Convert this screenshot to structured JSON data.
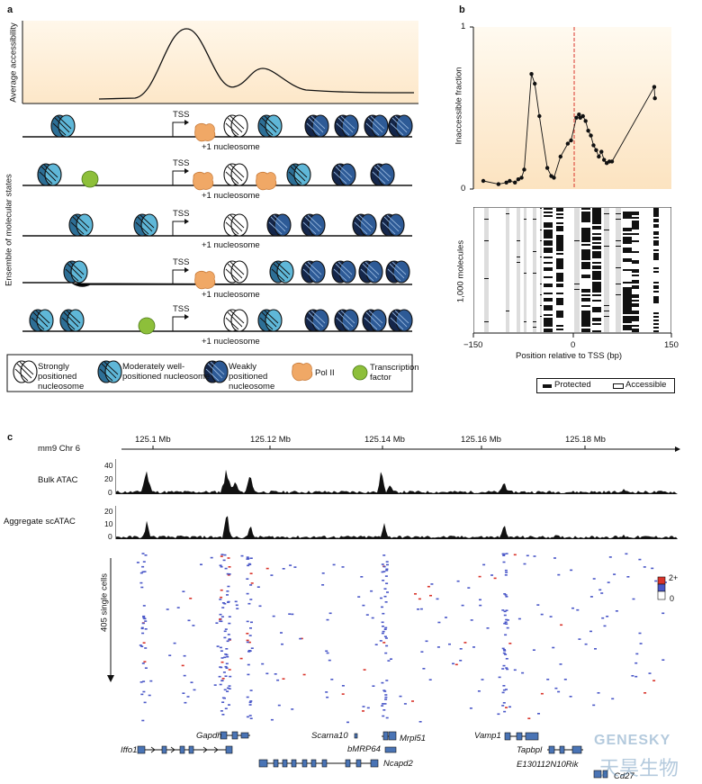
{
  "panels": {
    "a": "a",
    "b": "b",
    "c": "c"
  },
  "panel_a": {
    "y_label_top": "Average accessibility",
    "y_label_states": "Ensemble of molecular states",
    "tss": "TSS",
    "plus1": "+1 nucleosome",
    "legend": {
      "strong": "Strongly positioned nucleosome",
      "moderate": "Moderately well-positioned nucleosome",
      "weak": "Weakly positioned nucleosome",
      "pol2": "Pol II",
      "tf": "Transcription factor"
    }
  },
  "panel_b": {
    "ylabel": "Inaccessible fraction",
    "y_ticks": [
      "0",
      "1"
    ],
    "heat_ylabel": "1,000 molecules",
    "xlabel": "Position relative to TSS (bp)",
    "x_ticks": [
      "−150",
      "0",
      "150"
    ],
    "legend_protected": "Protected",
    "legend_accessible": "Accessible"
  },
  "chart_data": {
    "type": "line",
    "title": "",
    "xlabel": "Position relative to TSS (bp)",
    "ylabel": "Inaccessible fraction",
    "xlim": [
      -150,
      150
    ],
    "ylim": [
      0,
      1
    ],
    "x": [
      -135,
      -112,
      -100,
      -95,
      -87,
      -82,
      -77,
      -73,
      -62,
      -57,
      -50,
      -38,
      -32,
      -28,
      -18,
      -7,
      -2,
      6,
      10,
      12,
      16,
      20,
      24,
      28,
      32,
      36,
      40,
      44,
      48,
      52,
      56,
      60,
      124,
      125
    ],
    "y": [
      0.05,
      0.03,
      0.04,
      0.05,
      0.04,
      0.06,
      0.07,
      0.12,
      0.71,
      0.65,
      0.45,
      0.13,
      0.08,
      0.07,
      0.2,
      0.28,
      0.3,
      0.44,
      0.46,
      0.44,
      0.45,
      0.42,
      0.36,
      0.33,
      0.27,
      0.24,
      0.2,
      0.23,
      0.18,
      0.16,
      0.17,
      0.17,
      0.63,
      0.56
    ]
  },
  "panel_c": {
    "genome": "mm9 Chr 6",
    "ticks": [
      "125.1 Mb",
      "125.12 Mb",
      "125.14 Mb",
      "125.16 Mb",
      "125.18 Mb"
    ],
    "bulk_label": "Bulk ATAC",
    "bulk_ticks": [
      "40",
      "20",
      "0"
    ],
    "agg_label": "Aggregate scATAC",
    "agg_ticks": [
      "20",
      "10",
      "0"
    ],
    "cells_label": "405 single cells",
    "scale_top": "2+",
    "scale_bottom": "0",
    "genes": {
      "gapdh": "Gapdh",
      "iffo1": "Iffo1",
      "scarna10": "Scarna10",
      "mrpl51": "Mrpl51",
      "bmrp64": "bMRP64",
      "ncapd2": "Ncapd2",
      "vamp1": "Vamp1",
      "tapbpl": "Tapbpl",
      "e130112n10rik": "E130112N10Rik",
      "cd27": "Cd27"
    }
  },
  "watermark": {
    "brand": "GENESKY",
    "cn": "天昊生物"
  },
  "colors": {
    "strong": "#ffffff",
    "moderate": "#4aa3c8",
    "weak": "#1e3d6e",
    "pol2": "#f0a866",
    "tf": "#8dbf3a",
    "red_line": "#d9342b",
    "gene_box": "#4a74b5"
  }
}
